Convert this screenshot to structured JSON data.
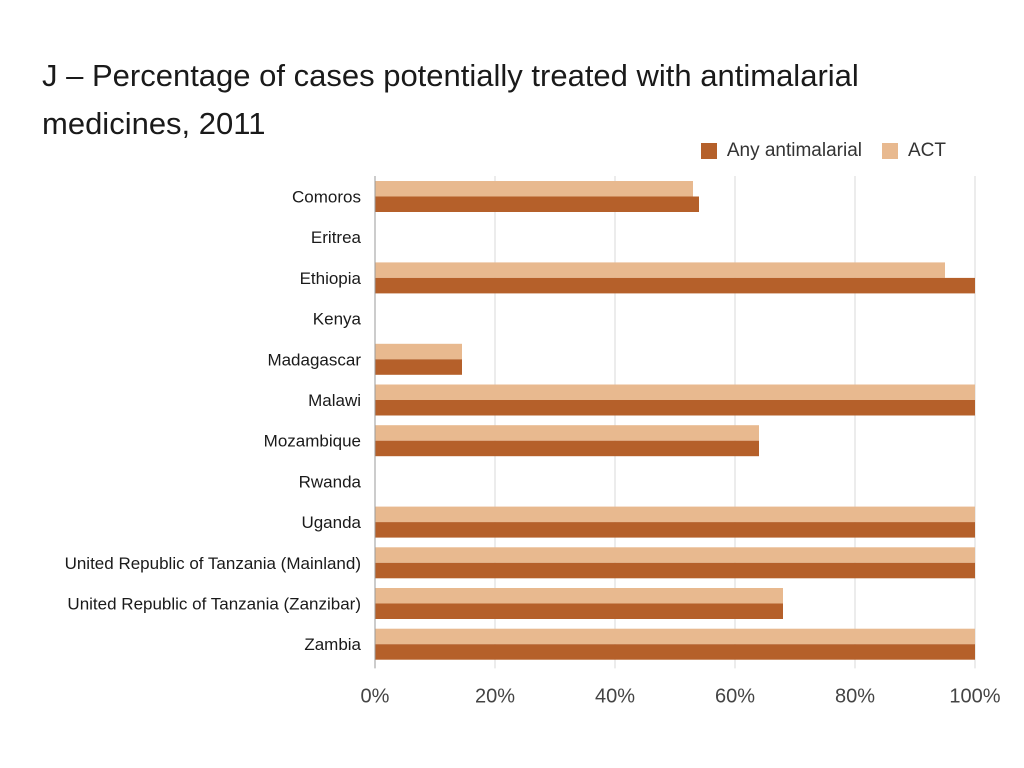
{
  "chart_data": {
    "type": "bar",
    "orientation": "horizontal",
    "title": "J – Percentage of cases potentially treated with antimalarial medicines, 2011",
    "xlabel": "",
    "ylabel": "",
    "xlim": [
      0,
      100
    ],
    "x_ticks": [
      "0%",
      "20%",
      "40%",
      "60%",
      "80%",
      "100%"
    ],
    "x_tick_values": [
      0,
      20,
      40,
      60,
      80,
      100
    ],
    "grid": true,
    "legend_position": "top-right",
    "categories": [
      "Comoros",
      "Eritrea",
      "Ethiopia",
      "Kenya",
      "Madagascar",
      "Malawi",
      "Mozambique",
      "Rwanda",
      "Uganda",
      "United Republic of Tanzania (Mainland)",
      "United Republic of Tanzania (Zanzibar)",
      "Zambia"
    ],
    "series": [
      {
        "name": "Any antimalarial",
        "color": "#b5602a",
        "values": [
          54,
          null,
          100,
          null,
          14.5,
          100,
          64,
          null,
          100,
          100,
          68,
          100
        ]
      },
      {
        "name": "ACT",
        "color": "#e8b98f",
        "values": [
          53,
          null,
          95,
          null,
          14.5,
          100,
          64,
          null,
          100,
          100,
          68,
          100
        ]
      }
    ]
  }
}
